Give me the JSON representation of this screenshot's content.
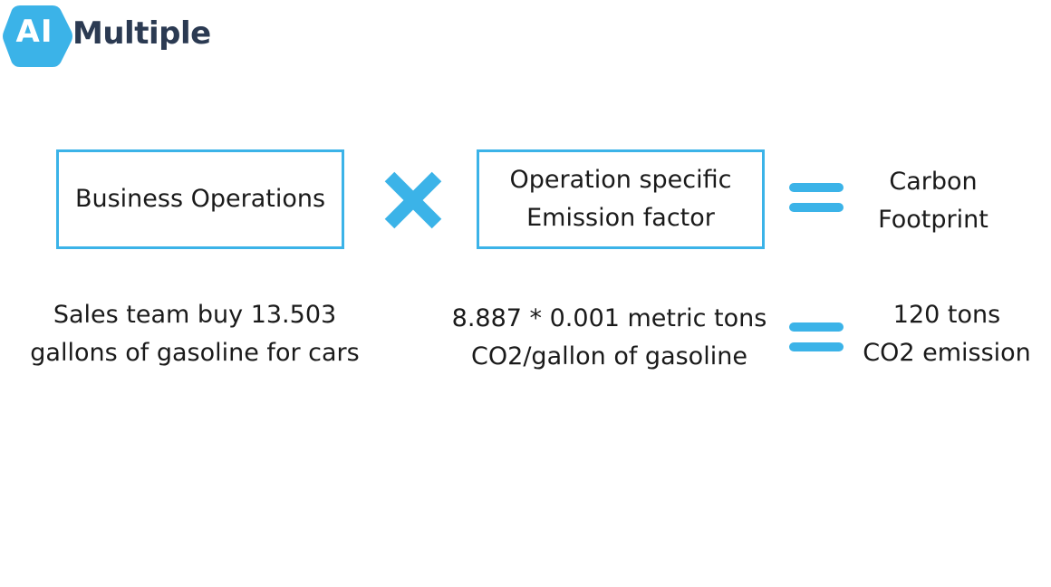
{
  "logo": {
    "badge_text": "AI",
    "wordmark": "Multiple",
    "badge_color": "#3bb3e8",
    "wordmark_color": "#2b3a52"
  },
  "accent_color": "#3bb3e8",
  "formula": {
    "left_box": {
      "lines": [
        "Business Operations"
      ]
    },
    "operator_1": "times-icon",
    "middle_box": {
      "lines": [
        "Operation specific",
        "Emission factor"
      ]
    },
    "operator_2": "equals-icon",
    "result": {
      "lines": [
        "Carbon",
        "Footprint"
      ]
    }
  },
  "example": {
    "left": {
      "lines": [
        "Sales team buy  13.503",
        "gallons of gasoline for cars"
      ]
    },
    "middle": {
      "lines": [
        "8.887 * 0.001 metric tons",
        "CO2/gallon of gasoline"
      ]
    },
    "operator": "equals-icon",
    "result": {
      "lines": [
        "120 tons",
        "CO2 emission"
      ]
    }
  }
}
